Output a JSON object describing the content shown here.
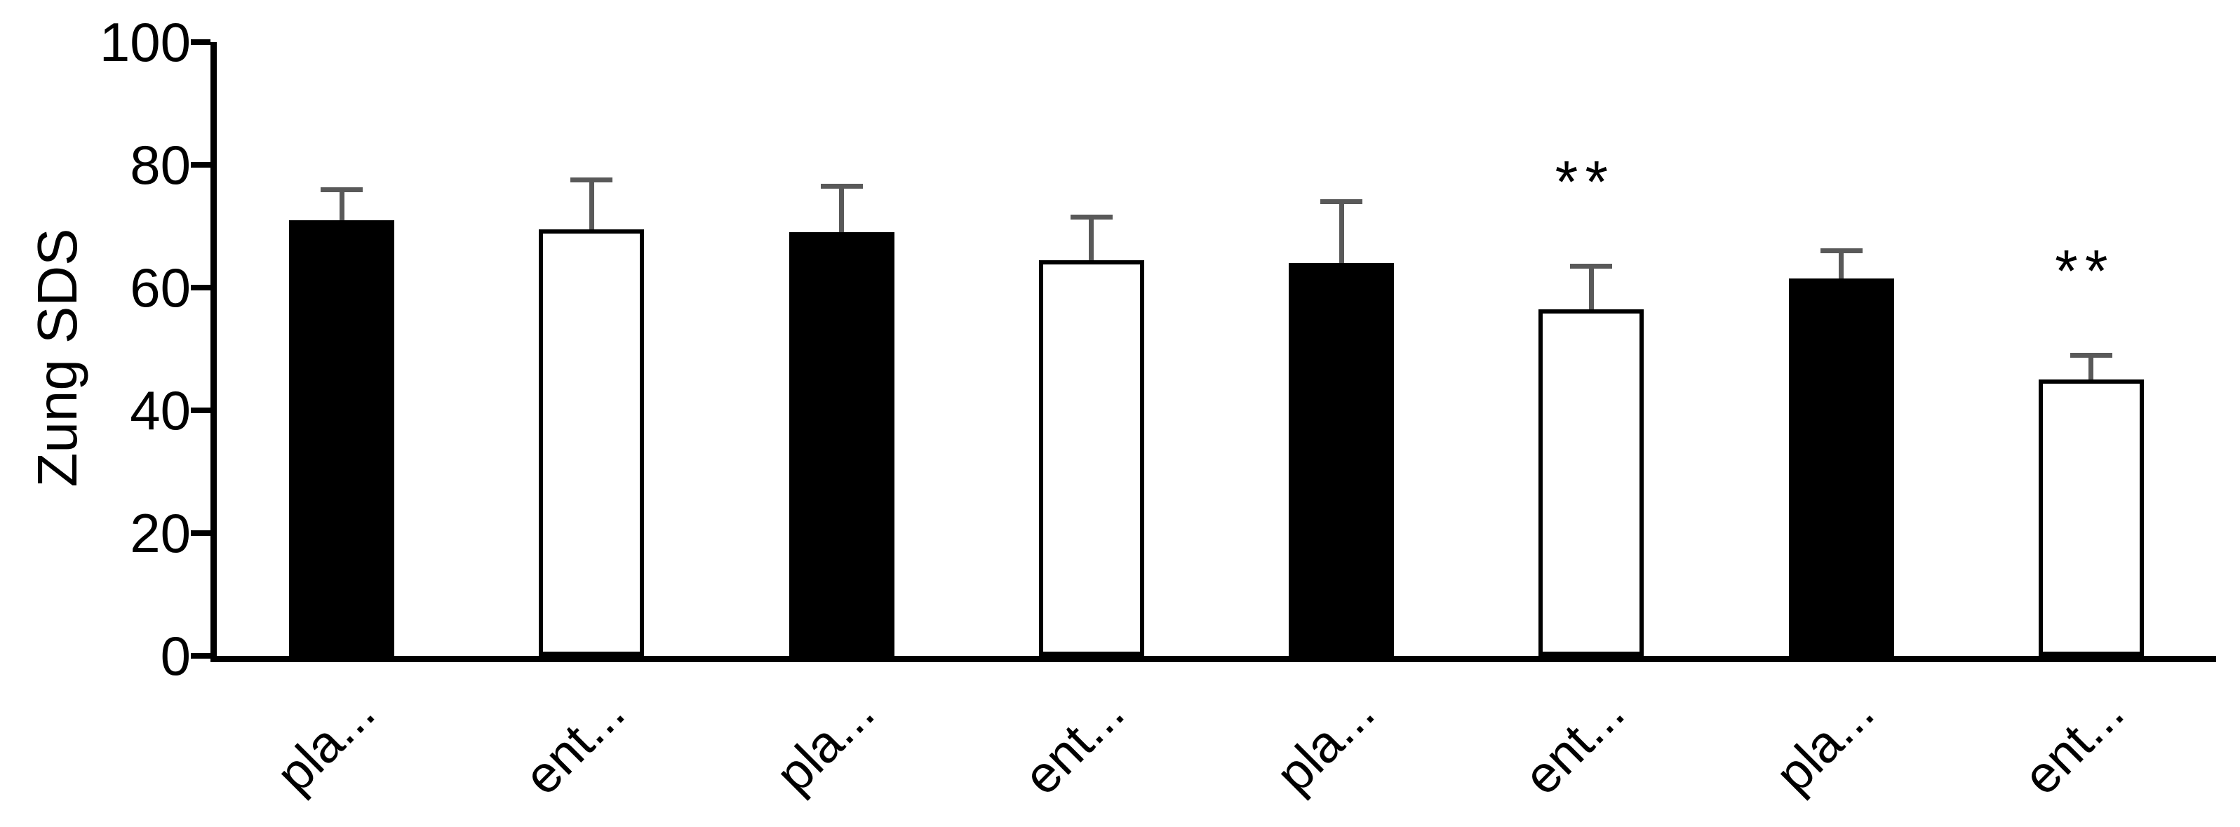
{
  "chart_data": {
    "type": "bar",
    "ylabel": "Zung SDS",
    "xlabel": "",
    "categories": [
      "pla...",
      "ent...",
      "pla...",
      "ent...",
      "pla...",
      "ent...",
      "pla...",
      "ent..."
    ],
    "values": [
      71,
      69.5,
      69,
      64.5,
      64,
      56.5,
      61.5,
      45
    ],
    "error_bars_plus": [
      5,
      8,
      7.5,
      7,
      10,
      7,
      4.5,
      4
    ],
    "bar_fills": [
      "#000000",
      "#ffffff",
      "#000000",
      "#ffffff",
      "#000000",
      "#ffffff",
      "#000000",
      "#ffffff"
    ],
    "bar_border_color": "#000000",
    "error_bar_color": "#595959",
    "ylim": [
      0,
      100
    ],
    "yticks": [
      0,
      20,
      40,
      60,
      80,
      100
    ],
    "grid": false,
    "legend_position": "none",
    "annotations": [
      {
        "bar_index": 5,
        "text": "**"
      },
      {
        "bar_index": 7,
        "text": "**"
      }
    ]
  }
}
